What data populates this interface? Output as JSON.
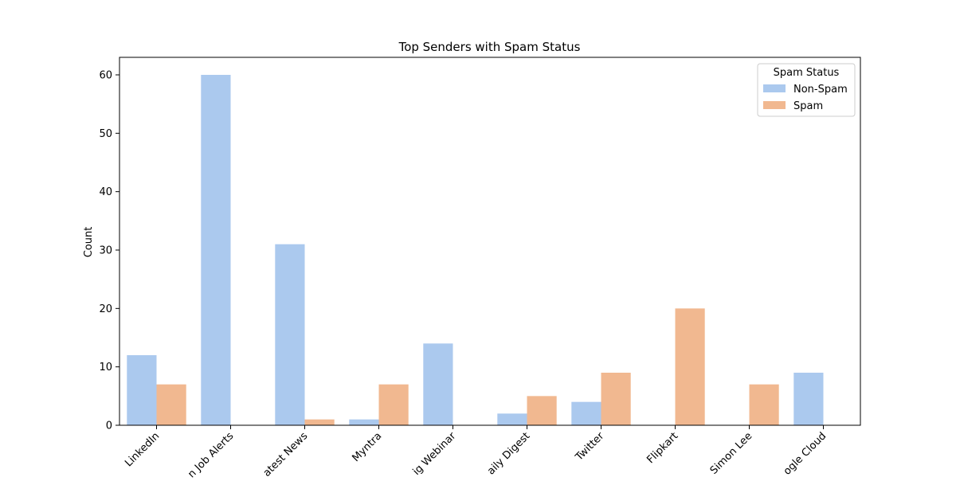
{
  "chart_data": {
    "type": "bar",
    "title": "Top Senders with Spam Status",
    "xlabel": "",
    "ylabel": "Count",
    "ylim": [
      0,
      63
    ],
    "yticks": [
      0,
      10,
      20,
      30,
      40,
      50,
      60
    ],
    "grid": false,
    "legend": {
      "title": "Spam Status",
      "placement": "top-right"
    },
    "categories": [
      "LinkedIn",
      "Job Alerts",
      "Latest News",
      "Myntra",
      "Webinar",
      "Daily Digest",
      "Twitter",
      "Flipkart",
      "Simon Lee",
      "Google Cloud"
    ],
    "category_labels_visible": [
      "LinkedIn",
      "n Job Alerts",
      "atest News",
      "Myntra",
      "ig Webinar",
      "aily Digest",
      "Twitter",
      "Flipkart",
      "Simon Lee",
      "ogle Cloud"
    ],
    "series": [
      {
        "name": "Non-Spam",
        "color": "#abc9ee",
        "values": [
          12,
          60,
          31,
          1,
          14,
          2,
          4,
          0,
          0,
          9
        ]
      },
      {
        "name": "Spam",
        "color": "#f1b890",
        "values": [
          7,
          0,
          1,
          7,
          0,
          5,
          9,
          20,
          7,
          0
        ]
      }
    ]
  }
}
